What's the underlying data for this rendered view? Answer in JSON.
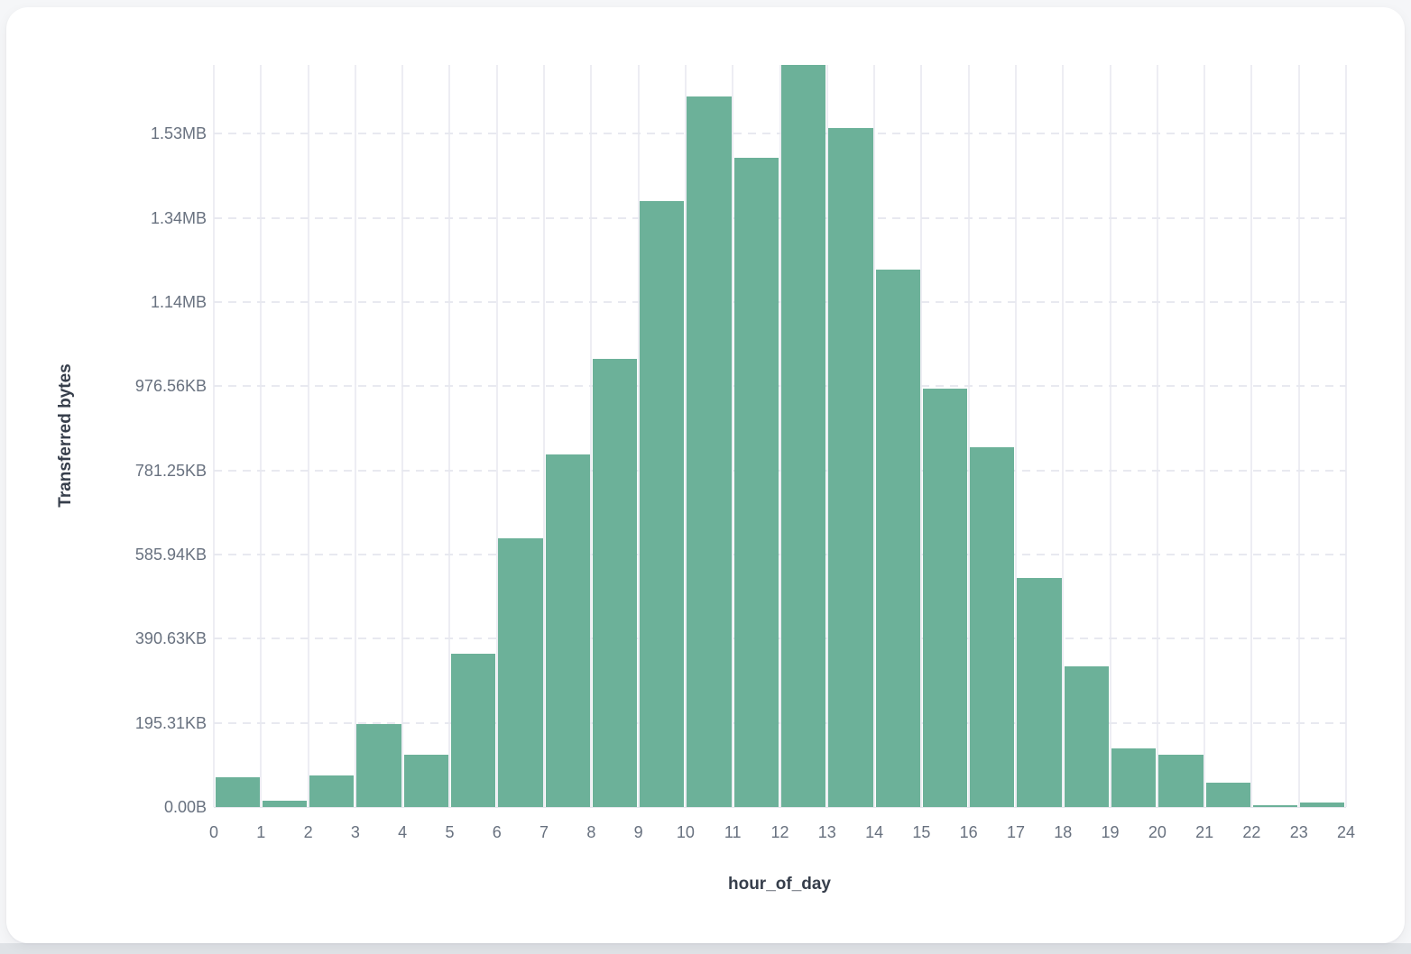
{
  "chart_data": {
    "type": "bar",
    "title": "",
    "xlabel": "hour_of_day",
    "ylabel": "Transferred bytes",
    "categories": [
      0,
      1,
      2,
      3,
      4,
      5,
      6,
      7,
      8,
      9,
      10,
      11,
      12,
      13,
      14,
      15,
      16,
      17,
      18,
      19,
      20,
      21,
      22,
      23
    ],
    "values_kb": [
      70,
      14,
      74,
      192,
      122,
      356,
      624,
      818,
      1041,
      1406,
      1649,
      1507,
      1722,
      1576,
      1248,
      972,
      835,
      532,
      326,
      136,
      122,
      56,
      4,
      11
    ],
    "unit": "KB (transferred bytes per hour bin, estimated from gridlines)",
    "x_tick_labels": [
      "0",
      "1",
      "2",
      "3",
      "4",
      "5",
      "6",
      "7",
      "8",
      "9",
      "10",
      "11",
      "12",
      "13",
      "14",
      "15",
      "16",
      "17",
      "18",
      "19",
      "20",
      "21",
      "22",
      "23",
      "24"
    ],
    "y_tick_labels": [
      "0.00B",
      "195.31KB",
      "390.63KB",
      "585.94KB",
      "781.25KB",
      "976.56KB",
      "1.14MB",
      "1.34MB",
      "1.53MB"
    ],
    "y_tick_step_kb": 195.3125,
    "ylim_kb": [
      0,
      1722.5
    ],
    "xlim": [
      0,
      24
    ],
    "grid": true,
    "legend": false,
    "bar_color": "#6cb199"
  },
  "colors": {
    "bar": "#6cb199",
    "grid_vertical": "#ededf3",
    "grid_horizontal": "#e8e9f0",
    "tick_text": "#68717f",
    "axis_title_text": "#363e4b",
    "card_background": "#ffffff",
    "page_background": "#f5f6f8",
    "page_bottom_edge": "#dfe2e6"
  }
}
